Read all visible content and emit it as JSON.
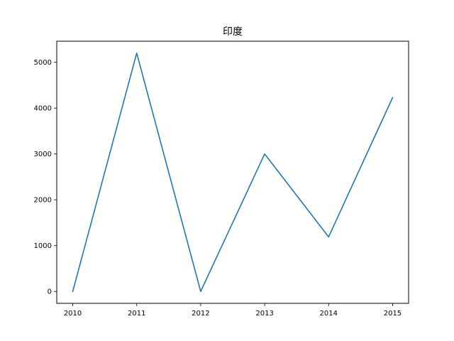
{
  "chart_data": {
    "type": "line",
    "title": "印度",
    "xlabel": "",
    "ylabel": "",
    "x": [
      2010,
      2011,
      2012,
      2013,
      2014,
      2015
    ],
    "series": [
      {
        "values": [
          0,
          5200,
          0,
          3000,
          1190,
          4230
        ],
        "color": "#1f77b4"
      }
    ],
    "xlim": [
      2009.75,
      2015.25
    ],
    "ylim": [
      -260,
      5460
    ],
    "xticks": [
      2010,
      2011,
      2012,
      2013,
      2014,
      2015
    ],
    "yticks": [
      0,
      1000,
      2000,
      3000,
      4000,
      5000
    ],
    "xtick_labels": [
      "2010",
      "2011",
      "2012",
      "2013",
      "2014",
      "2015"
    ],
    "ytick_labels": [
      "0",
      "1000",
      "2000",
      "3000",
      "4000",
      "5000"
    ],
    "grid": false,
    "legend": "none"
  }
}
